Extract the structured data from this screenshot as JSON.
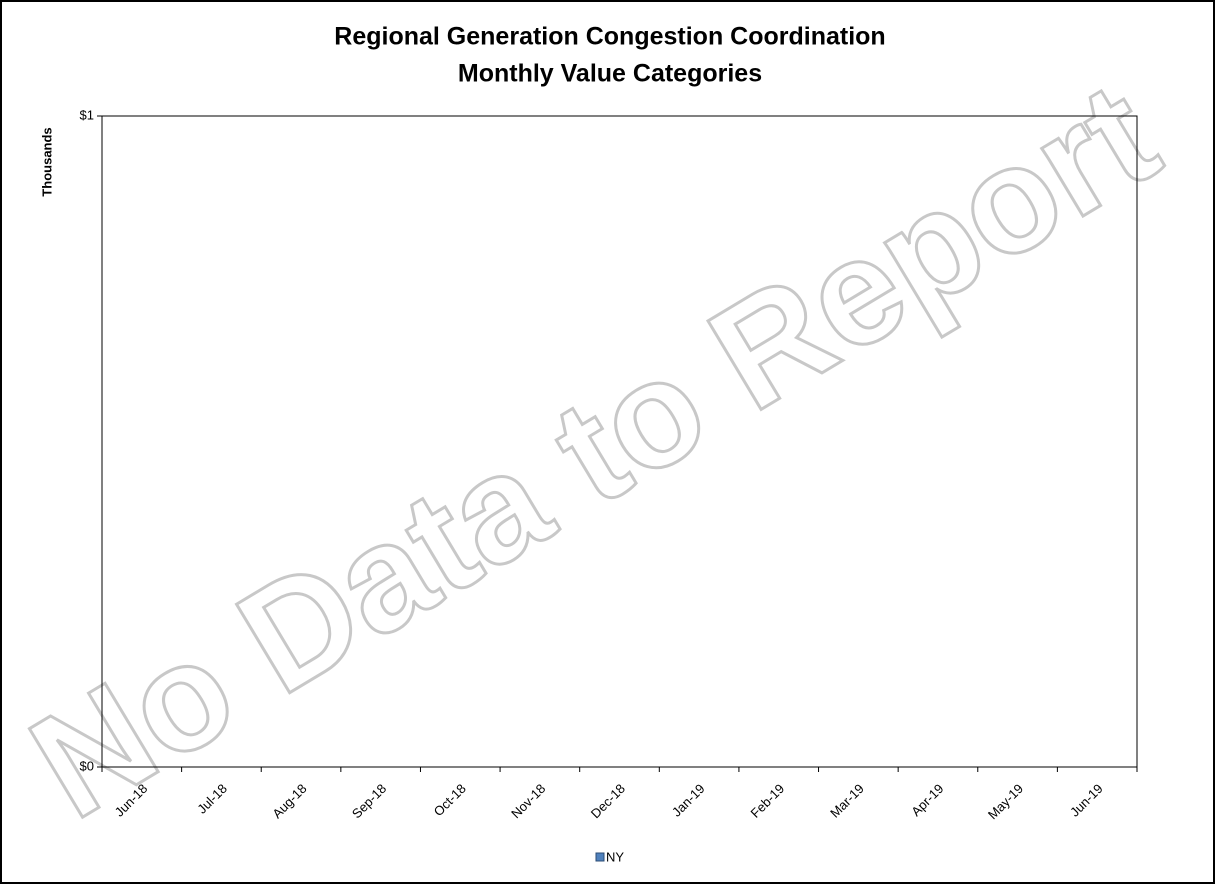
{
  "chart_data": {
    "type": "bar",
    "title": "Regional Generation Congestion Coordination",
    "subtitle": "Monthly Value Categories",
    "y_label": "Thousands",
    "annotation": "No Data to Report",
    "categories": [
      "Jun-18",
      "Jul-18",
      "Aug-18",
      "Sep-18",
      "Oct-18",
      "Nov-18",
      "Dec-18",
      "Jan-19",
      "Feb-19",
      "Mar-19",
      "Apr-19",
      "May-19",
      "Jun-19"
    ],
    "series": [
      {
        "name": "NY",
        "color": "#4f81bd",
        "values": [
          null,
          null,
          null,
          null,
          null,
          null,
          null,
          null,
          null,
          null,
          null,
          null,
          null
        ]
      }
    ],
    "ylim": [
      0,
      1
    ],
    "yticks": [
      {
        "value": 0,
        "label": "$0"
      },
      {
        "value": 1,
        "label": "$1"
      }
    ],
    "grid": false,
    "legend": "bottom"
  }
}
